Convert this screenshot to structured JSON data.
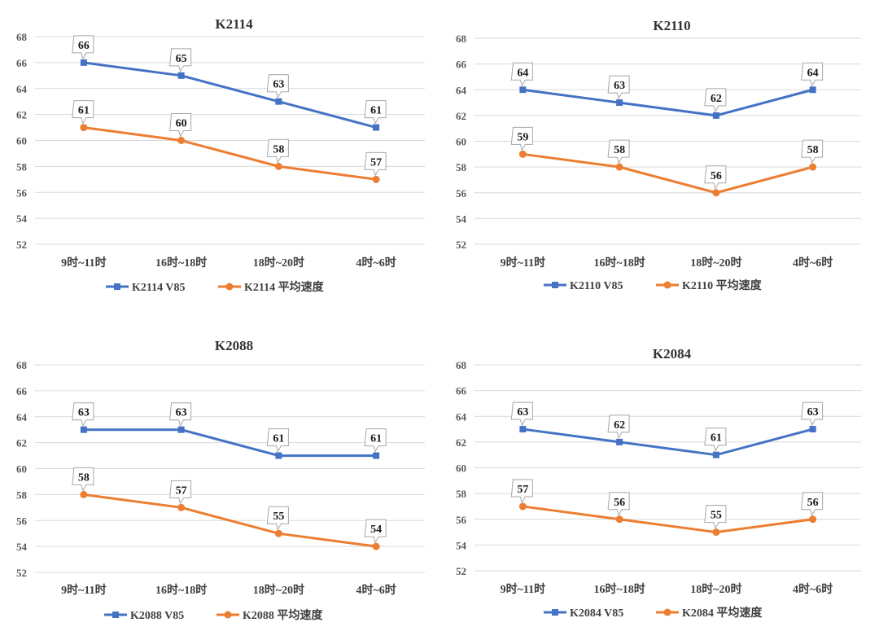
{
  "colors": {
    "v85": "#4472C4",
    "avg": "#ED7D31",
    "grid": "#D9D9D9"
  },
  "chart_data": [
    {
      "type": "line",
      "title": "K2114",
      "categories": [
        "9时~11时",
        "16时~18时",
        "18时~20时",
        "4时~6时"
      ],
      "ylim": [
        52,
        68
      ],
      "yticks": [
        52,
        54,
        56,
        58,
        60,
        62,
        64,
        66,
        68
      ],
      "series": [
        {
          "name": "K2114 V85",
          "values": [
            66,
            65,
            63,
            61
          ],
          "marker": "square"
        },
        {
          "name": "K2114 平均速度",
          "values": [
            61,
            60,
            58,
            57
          ],
          "marker": "circle"
        }
      ]
    },
    {
      "type": "line",
      "title": "K2110",
      "categories": [
        "9时~11时",
        "16时~18时",
        "18时~20时",
        "4时~6时"
      ],
      "ylim": [
        52,
        68
      ],
      "yticks": [
        52,
        54,
        56,
        58,
        60,
        62,
        64,
        66,
        68
      ],
      "series": [
        {
          "name": "K2110 V85",
          "values": [
            64,
            63,
            62,
            64
          ],
          "marker": "square"
        },
        {
          "name": "K2110 平均速度",
          "values": [
            59,
            58,
            56,
            58
          ],
          "marker": "circle"
        }
      ]
    },
    {
      "type": "line",
      "title": "K2088",
      "categories": [
        "9时~11时",
        "16时~18时",
        "18时~20时",
        "4时~6时"
      ],
      "ylim": [
        52,
        68
      ],
      "yticks": [
        52,
        54,
        56,
        58,
        60,
        62,
        64,
        66,
        68
      ],
      "series": [
        {
          "name": "K2088 V85",
          "values": [
            63,
            63,
            61,
            61
          ],
          "marker": "square"
        },
        {
          "name": "K2088 平均速度",
          "values": [
            58,
            57,
            55,
            54
          ],
          "marker": "circle"
        }
      ]
    },
    {
      "type": "line",
      "title": "K2084",
      "categories": [
        "9时~11时",
        "16时~18时",
        "18时~20时",
        "4时~6时"
      ],
      "ylim": [
        52,
        68
      ],
      "yticks": [
        52,
        54,
        56,
        58,
        60,
        62,
        64,
        66,
        68
      ],
      "series": [
        {
          "name": "K2084 V85",
          "values": [
            63,
            62,
            61,
            63
          ],
          "marker": "square"
        },
        {
          "name": "K2084 平均速度",
          "values": [
            57,
            56,
            55,
            56
          ],
          "marker": "circle"
        }
      ]
    }
  ]
}
